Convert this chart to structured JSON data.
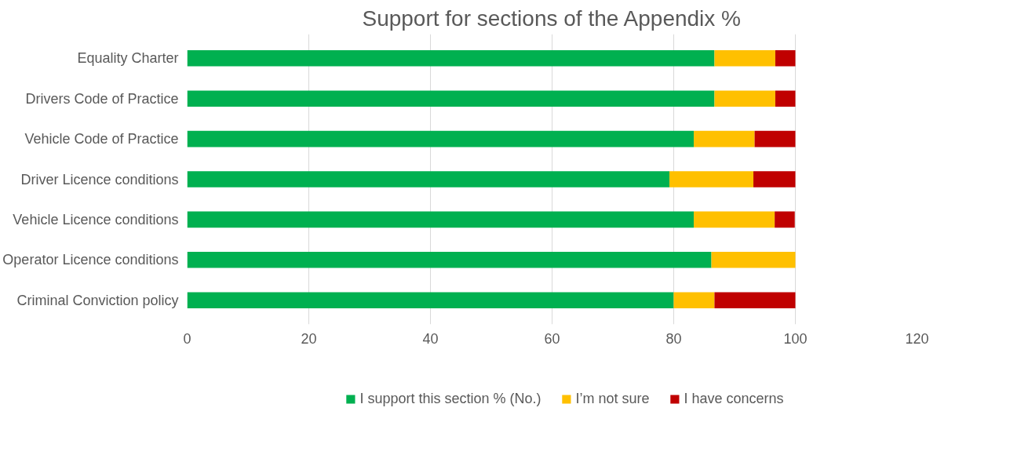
{
  "chart_data": {
    "type": "bar",
    "orientation": "horizontal",
    "stacked": true,
    "title": "Support for sections of the Appendix %",
    "categories": [
      "Equality Charter",
      "Drivers Code of Practice",
      "Vehicle Code of Practice",
      "Driver Licence conditions",
      "Vehicle Licence conditions",
      "Operator Licence conditions",
      "Criminal Conviction policy"
    ],
    "series": [
      {
        "name": "I support this section % (No.)",
        "color": "#00b050",
        "values": [
          86.7,
          86.7,
          83.3,
          79.3,
          83.3,
          86.2,
          80.0
        ]
      },
      {
        "name": "I’m not sure",
        "color": "#ffc000",
        "values": [
          10.0,
          10.0,
          10.0,
          13.8,
          13.3,
          13.8,
          6.7
        ]
      },
      {
        "name": "I have concerns",
        "color": "#c00000",
        "values": [
          3.3,
          3.3,
          6.7,
          6.9,
          3.3,
          0,
          13.3
        ]
      }
    ],
    "xlim": [
      0,
      120
    ],
    "xticks": [
      0,
      20,
      40,
      60,
      80,
      100,
      120
    ],
    "grid": "x",
    "legend": "bottom"
  }
}
